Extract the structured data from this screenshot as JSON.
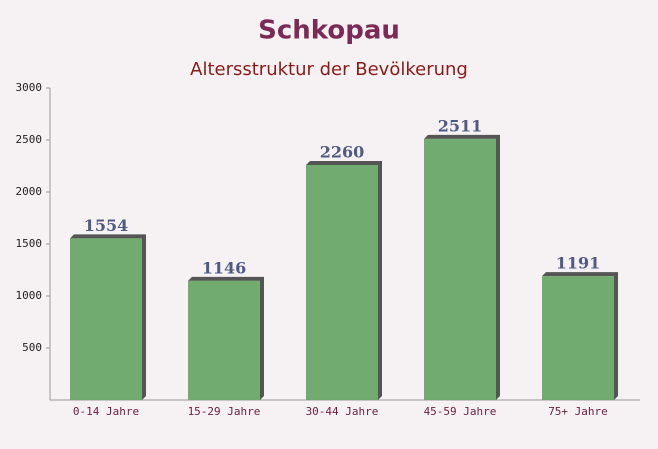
{
  "chart_data": {
    "type": "bar",
    "title": "Schkopau",
    "subtitle": "Altersstruktur der Bevölkerung",
    "categories": [
      "0-14 Jahre",
      "15-29 Jahre",
      "30-44 Jahre",
      "45-59 Jahre",
      "75+ Jahre"
    ],
    "values": [
      1554,
      1146,
      2260,
      2511,
      1191
    ],
    "color": "#6aa668",
    "ylim": [
      0,
      3000
    ],
    "yticks": [
      500,
      1000,
      1500,
      2000,
      2500,
      3000
    ],
    "grid": false
  }
}
